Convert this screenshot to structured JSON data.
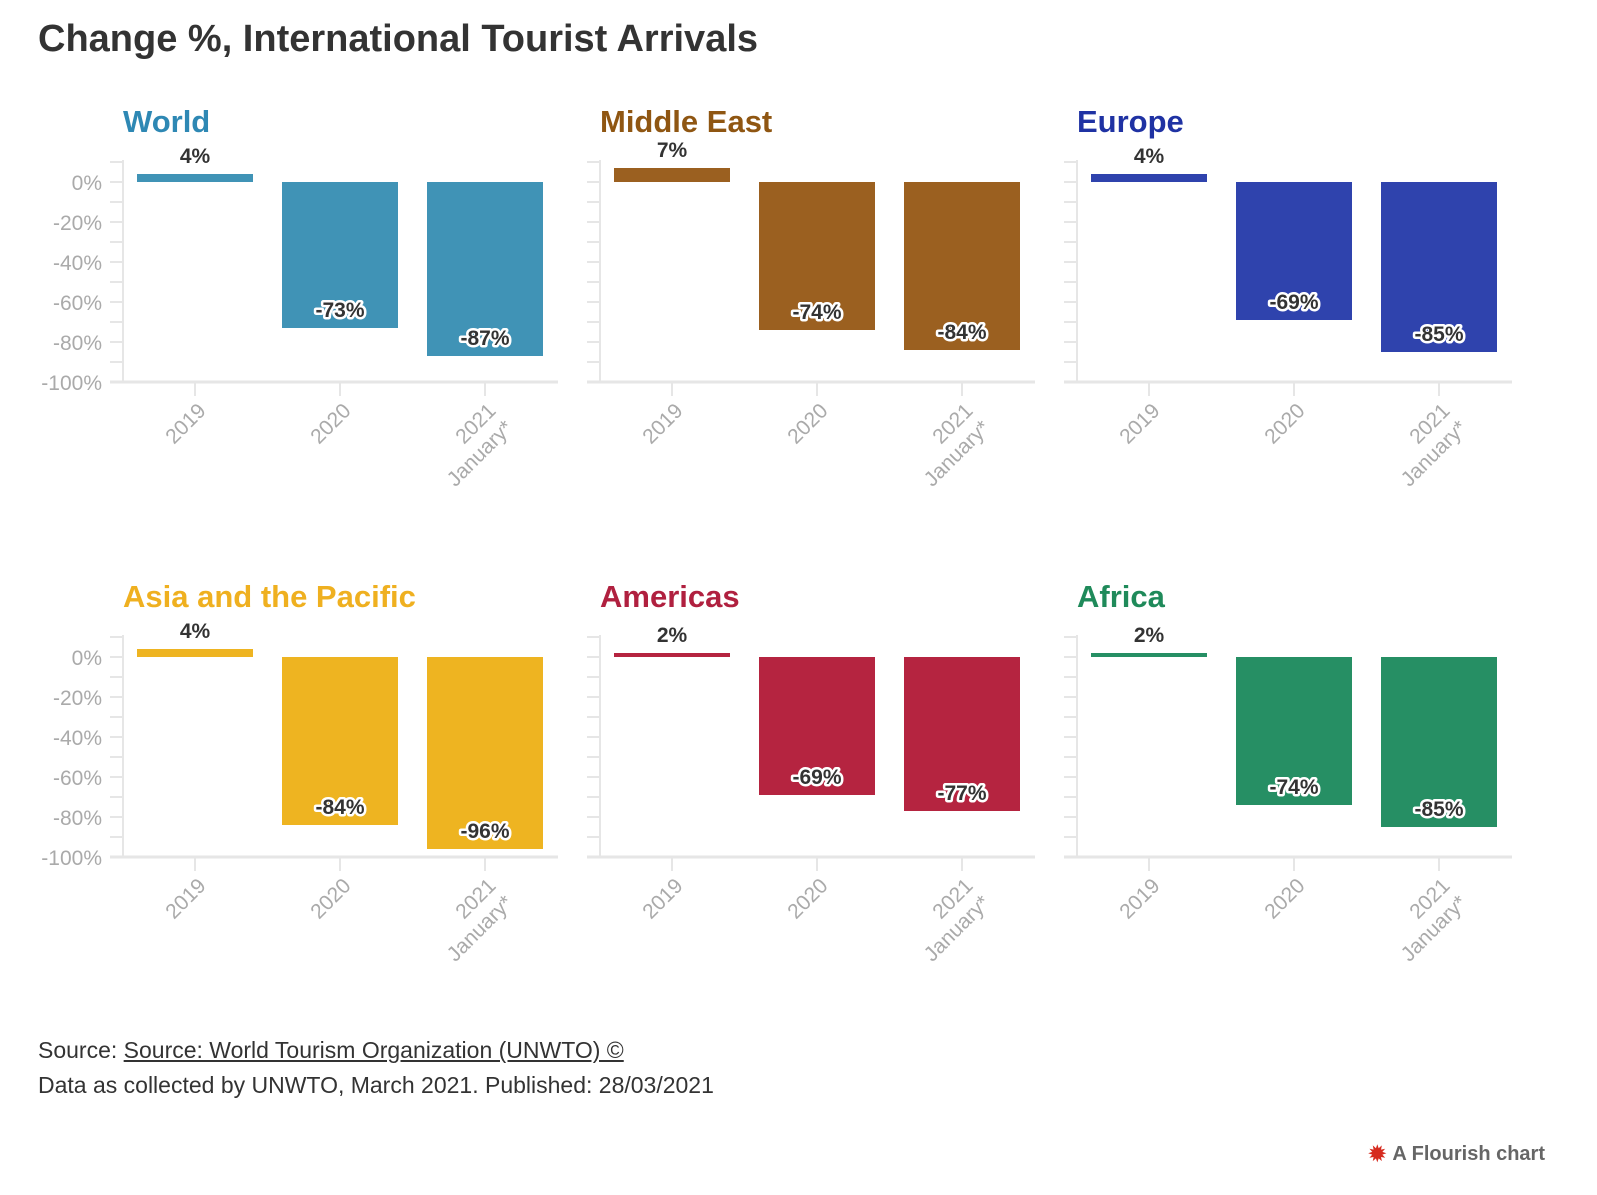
{
  "title": "Change %, International Tourist Arrivals",
  "footer": {
    "source_prefix": "Source: ",
    "source_link": "Source: World Tourism Organization (UNWTO) ©",
    "note": "Data as collected by UNWTO, March 2021. Published: 28/03/2021",
    "brand": "A Flourish chart"
  },
  "chart_data": [
    {
      "type": "bar",
      "title": "World",
      "color": "#4093b6",
      "title_color": "#2e88b4",
      "categories": [
        "2019",
        "2020",
        "2021 January*"
      ],
      "values": [
        4,
        -73,
        -87
      ],
      "labels": [
        "4%",
        "-73%",
        "-87%"
      ],
      "ylim": [
        -100,
        10
      ],
      "yticks": [
        "0%",
        "-20%",
        "-40%",
        "-60%",
        "-80%",
        "-100%"
      ]
    },
    {
      "type": "bar",
      "title": "Middle East",
      "color": "#9b6020",
      "title_color": "#8f5612",
      "categories": [
        "2019",
        "2020",
        "2021 January*"
      ],
      "values": [
        7,
        -74,
        -84
      ],
      "labels": [
        "7%",
        "-74%",
        "-84%"
      ],
      "ylim": [
        -100,
        10
      ]
    },
    {
      "type": "bar",
      "title": "Europe",
      "color": "#2f43ad",
      "title_color": "#1f32a3",
      "categories": [
        "2019",
        "2020",
        "2021 January*"
      ],
      "values": [
        4,
        -69,
        -85
      ],
      "labels": [
        "4%",
        "-69%",
        "-85%"
      ],
      "ylim": [
        -100,
        10
      ]
    },
    {
      "type": "bar",
      "title": "Asia and the Pacific",
      "color": "#eeb421",
      "title_color": "#efb020",
      "categories": [
        "2019",
        "2020",
        "2021 January*"
      ],
      "values": [
        4,
        -84,
        -96
      ],
      "labels": [
        "4%",
        "-84%",
        "-96%"
      ],
      "ylim": [
        -100,
        10
      ],
      "yticks": [
        "0%",
        "-20%",
        "-40%",
        "-60%",
        "-80%",
        "-100%"
      ]
    },
    {
      "type": "bar",
      "title": "Americas",
      "color": "#b52440",
      "title_color": "#b0203f",
      "categories": [
        "2019",
        "2020",
        "2021 January*"
      ],
      "values": [
        2,
        -69,
        -77
      ],
      "labels": [
        "2%",
        "-69%",
        "-77%"
      ],
      "ylim": [
        -100,
        10
      ]
    },
    {
      "type": "bar",
      "title": "Africa",
      "color": "#268f64",
      "title_color": "#1f8a5a",
      "categories": [
        "2019",
        "2020",
        "2021 January*"
      ],
      "values": [
        2,
        -74,
        -85
      ],
      "labels": [
        "2%",
        "-74%",
        "-85%"
      ],
      "ylim": [
        -100,
        10
      ]
    }
  ]
}
